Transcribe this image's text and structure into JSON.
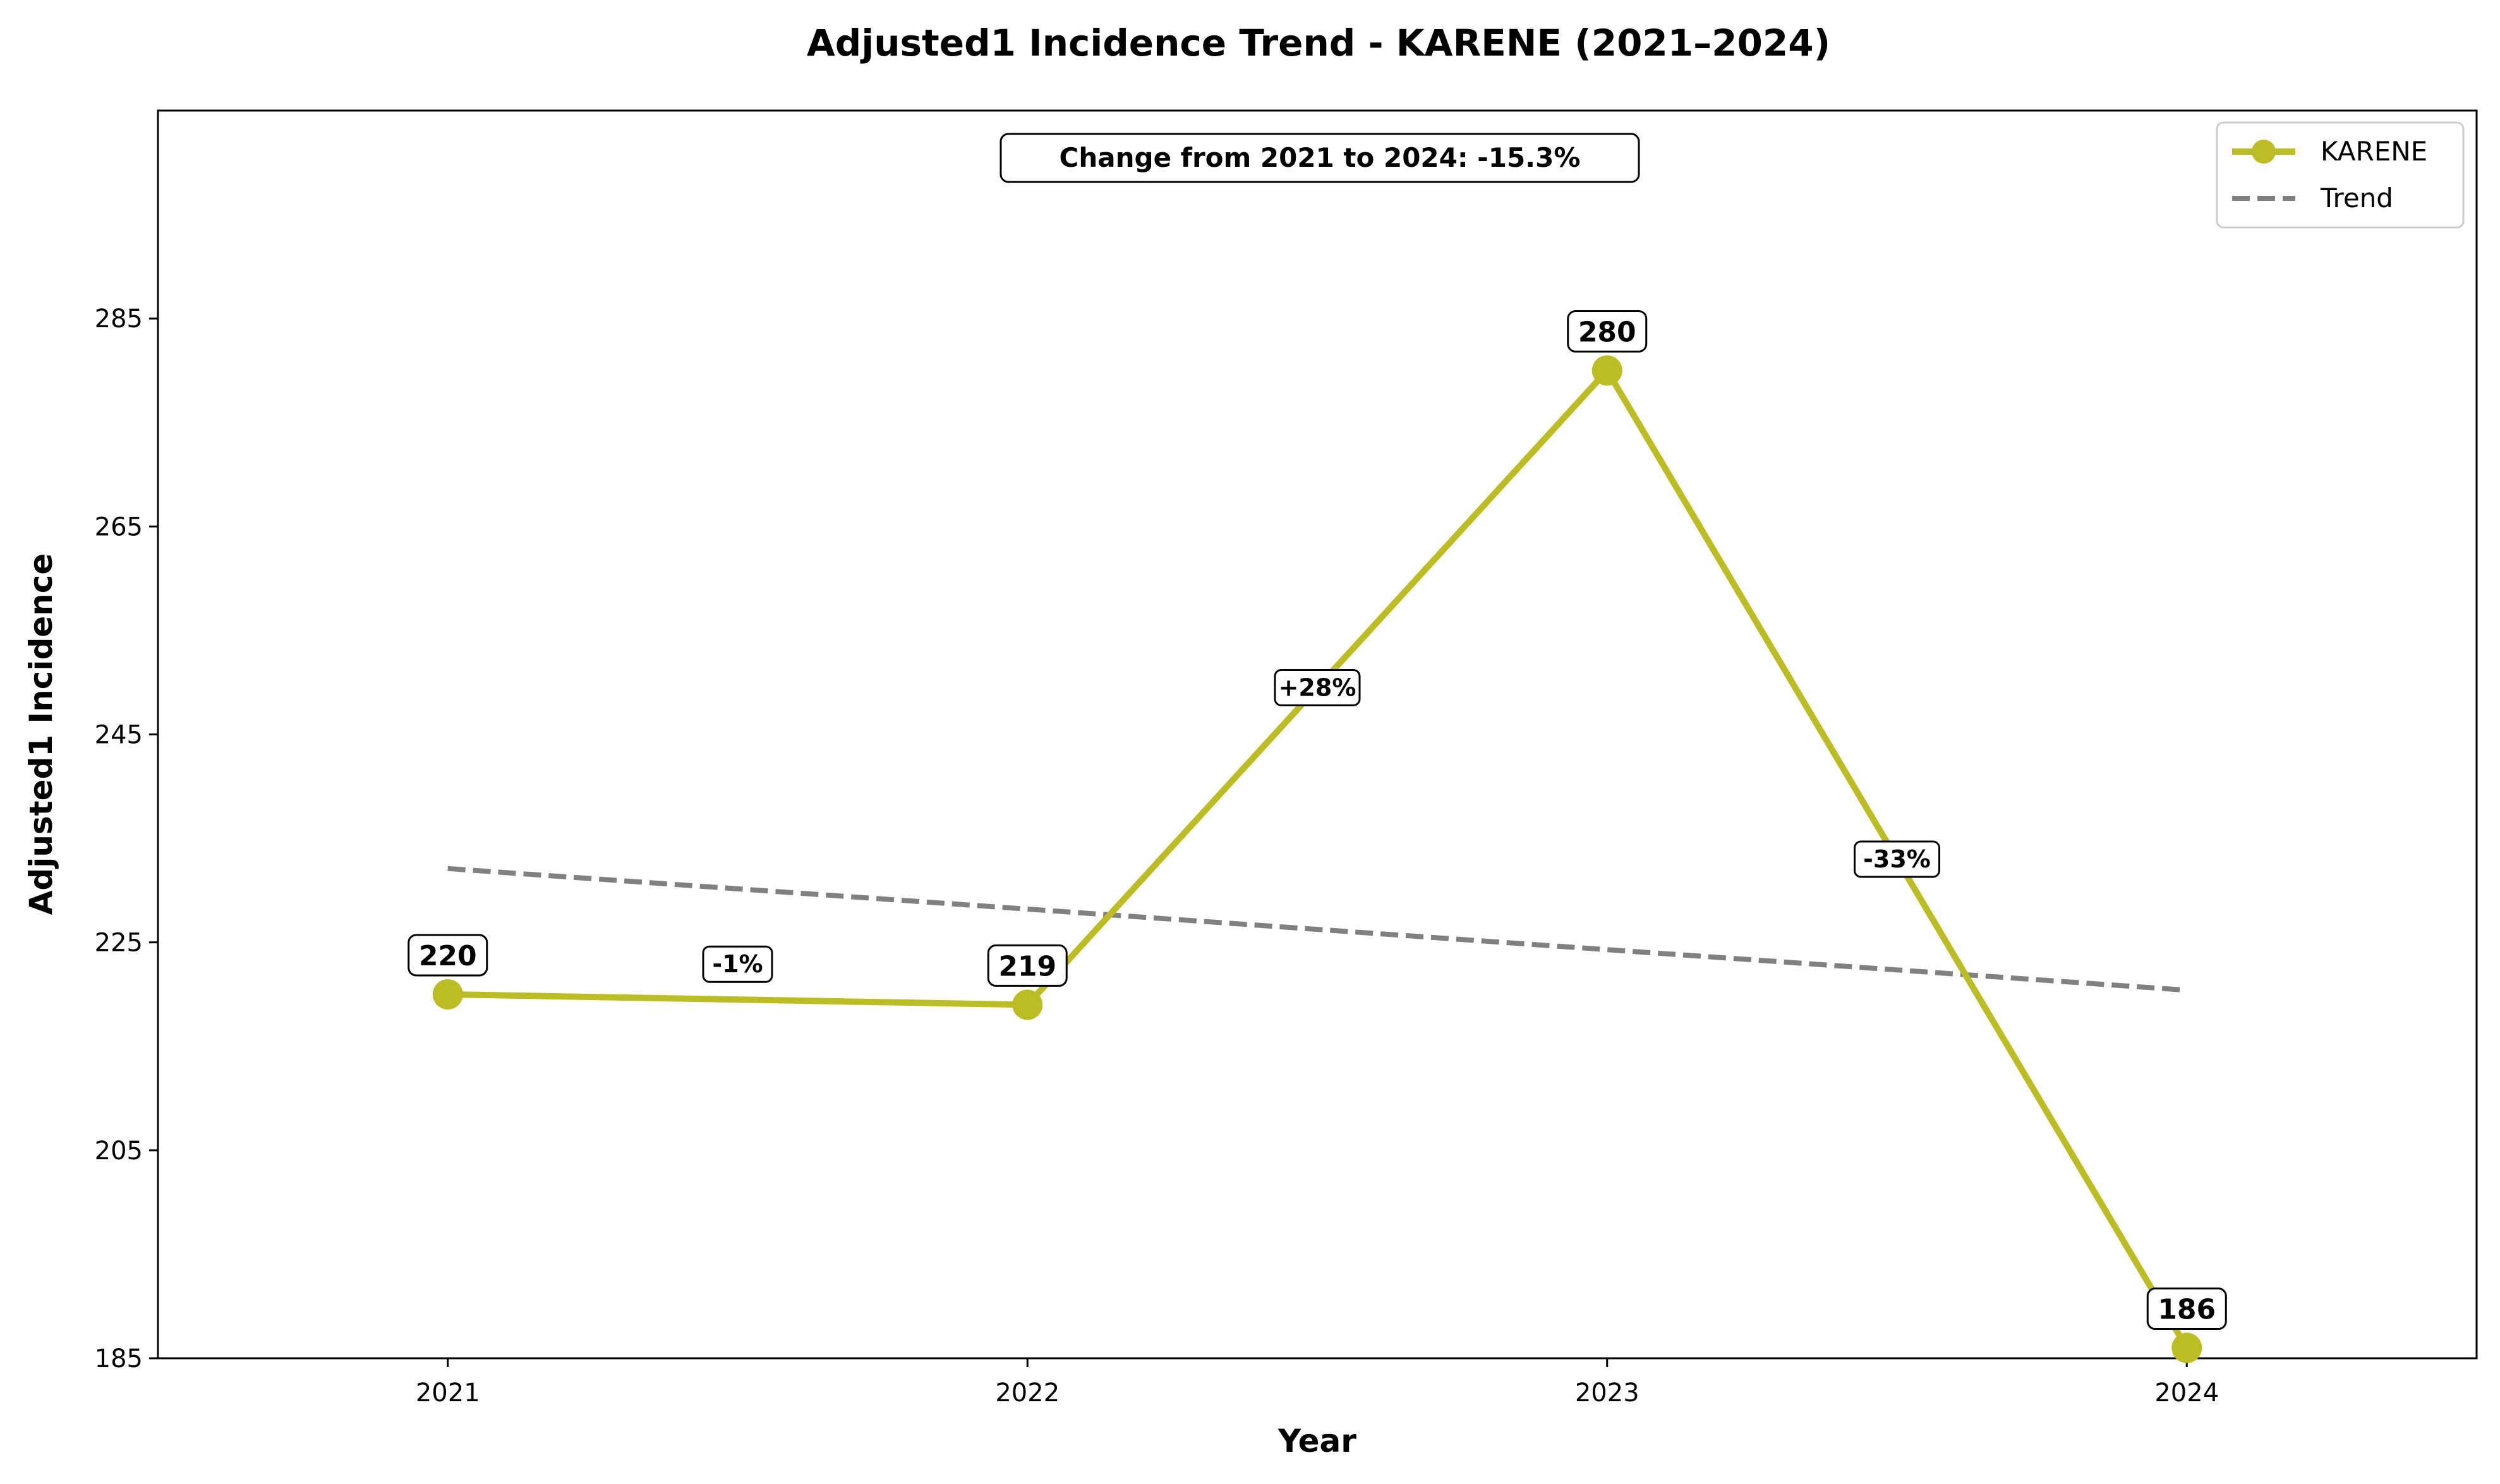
{
  "chart_data": {
    "type": "line",
    "title": "Adjusted1 Incidence Trend - KARENE (2021–2024)",
    "xlabel": "Year",
    "ylabel": "Adjusted1 Incidence",
    "x": [
      "2021",
      "2022",
      "2023",
      "2024"
    ],
    "series": [
      {
        "name": "KARENE",
        "values": [
          220,
          219,
          280,
          186
        ],
        "value_labels": [
          "220",
          "219",
          "280",
          "186"
        ],
        "color": "#bcbd22"
      }
    ],
    "trend": {
      "name": "Trend",
      "start": 232.1,
      "end": 220.4,
      "color": "#808080"
    },
    "segment_changes": [
      "-1%",
      "+28%",
      "-33%"
    ],
    "annotation": "Change from 2021 to 2024: -15.3%",
    "ylim": [
      185,
      305
    ],
    "yticks": [
      "185",
      "205",
      "225",
      "245",
      "265",
      "285"
    ],
    "xlim": [
      -0.5,
      3.5
    ],
    "grid": false,
    "legend_position": "top-right"
  }
}
